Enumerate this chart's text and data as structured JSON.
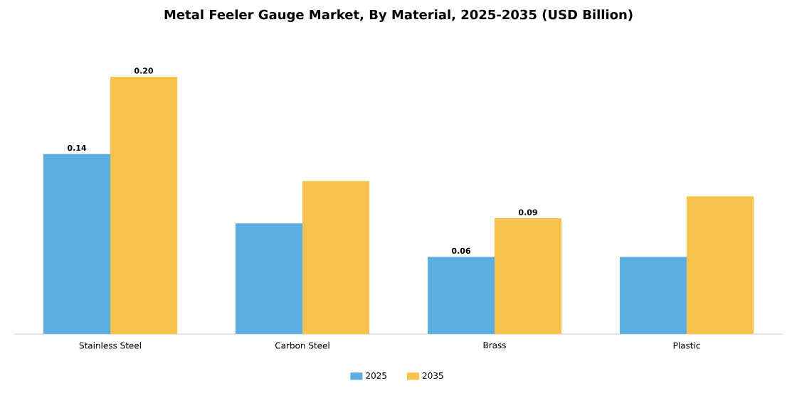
{
  "chart_data": {
    "type": "bar",
    "title": "Metal Feeler Gauge Market, By Material, 2025-2035 (USD Billion)",
    "categories": [
      "Stainless Steel",
      "Carbon Steel",
      "Brass",
      "Plastic"
    ],
    "legend": "bottom",
    "series": [
      {
        "name": "2025",
        "color": "#5dade2",
        "values": [
          0.14,
          0.086,
          0.06,
          0.06
        ],
        "value_labels": [
          "0.14",
          null,
          "0.06",
          null
        ]
      },
      {
        "name": "2035",
        "color": "#f9c24e",
        "values": [
          0.2,
          0.119,
          0.09,
          0.107
        ],
        "value_labels": [
          "0.20",
          null,
          "0.09",
          null
        ]
      }
    ]
  }
}
